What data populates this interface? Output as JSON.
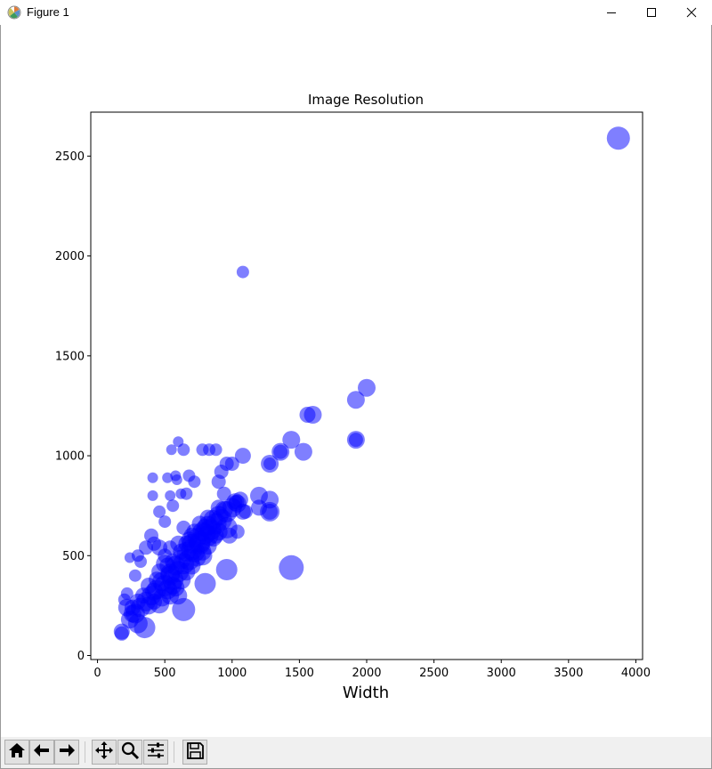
{
  "window": {
    "title": "Figure 1",
    "icons": {
      "app": "matplotlib-logo-icon",
      "minimize": "minimize-icon",
      "maximize": "maximize-icon",
      "close": "close-icon"
    }
  },
  "toolbar": {
    "buttons": [
      "home-icon",
      "back-arrow-icon",
      "forward-arrow-icon",
      "pan-icon",
      "zoom-magnifier-icon",
      "configure-subplots-icon",
      "save-disk-icon"
    ]
  },
  "chart_data": {
    "type": "scatter",
    "title": "Image Resolution",
    "xlabel": "Width",
    "ylabel": "",
    "xlim": [
      -50,
      4050
    ],
    "ylim": [
      -20,
      2720
    ],
    "xticks": [
      0,
      500,
      1000,
      1500,
      2000,
      2500,
      3000,
      3500,
      4000
    ],
    "yticks": [
      0,
      500,
      1000,
      1500,
      2000,
      2500
    ],
    "grid": false,
    "marker_color": "#0000ff",
    "marker_alpha": 0.5,
    "size_encoding": "marker size varies per point",
    "points": [
      [
        3870,
        2590,
        13
      ],
      [
        1080,
        1920,
        7
      ],
      [
        2000,
        1340,
        10
      ],
      [
        1920,
        1280,
        10
      ],
      [
        1600,
        1205,
        10
      ],
      [
        1560,
        1205,
        9
      ],
      [
        1920,
        1080,
        10
      ],
      [
        1920,
        1080,
        8
      ],
      [
        1440,
        1080,
        10
      ],
      [
        1530,
        1020,
        10
      ],
      [
        1360,
        1020,
        10
      ],
      [
        1360,
        1020,
        8
      ],
      [
        1280,
        960,
        10
      ],
      [
        1280,
        960,
        7
      ],
      [
        1440,
        440,
        14
      ],
      [
        1280,
        720,
        11
      ],
      [
        1280,
        720,
        9
      ],
      [
        1280,
        780,
        10
      ],
      [
        1200,
        800,
        10
      ],
      [
        1200,
        740,
        9
      ],
      [
        1080,
        1000,
        9
      ],
      [
        1080,
        720,
        9
      ],
      [
        1024,
        768,
        10
      ],
      [
        1024,
        768,
        8
      ],
      [
        1000,
        960,
        8
      ],
      [
        960,
        960,
        8
      ],
      [
        920,
        920,
        8
      ],
      [
        900,
        870,
        8
      ],
      [
        940,
        810,
        8
      ],
      [
        960,
        640,
        12
      ],
      [
        960,
        430,
        12
      ],
      [
        900,
        740,
        9
      ],
      [
        880,
        1030,
        7
      ],
      [
        830,
        1030,
        7
      ],
      [
        780,
        1030,
        7
      ],
      [
        800,
        640,
        10
      ],
      [
        820,
        600,
        12
      ],
      [
        760,
        560,
        12
      ],
      [
        780,
        500,
        11
      ],
      [
        700,
        530,
        12
      ],
      [
        720,
        870,
        7
      ],
      [
        680,
        900,
        7
      ],
      [
        640,
        1030,
        7
      ],
      [
        600,
        1070,
        6
      ],
      [
        550,
        1030,
        6
      ],
      [
        580,
        900,
        6
      ],
      [
        590,
        880,
        6
      ],
      [
        520,
        890,
        6
      ],
      [
        410,
        890,
        6
      ],
      [
        410,
        800,
        6
      ],
      [
        540,
        800,
        6
      ],
      [
        620,
        810,
        6
      ],
      [
        660,
        810,
        7
      ],
      [
        560,
        750,
        7
      ],
      [
        500,
        670,
        7
      ],
      [
        460,
        720,
        7
      ],
      [
        640,
        640,
        8
      ],
      [
        700,
        600,
        9
      ],
      [
        800,
        360,
        12
      ],
      [
        640,
        230,
        13
      ],
      [
        540,
        400,
        11
      ],
      [
        500,
        460,
        10
      ],
      [
        460,
        540,
        9
      ],
      [
        420,
        560,
        8
      ],
      [
        400,
        600,
        8
      ],
      [
        360,
        540,
        8
      ],
      [
        300,
        500,
        7
      ],
      [
        320,
        470,
        7
      ],
      [
        280,
        400,
        7
      ],
      [
        240,
        490,
        6
      ],
      [
        560,
        350,
        10
      ],
      [
        600,
        300,
        10
      ],
      [
        460,
        260,
        11
      ],
      [
        380,
        250,
        10
      ],
      [
        350,
        140,
        12
      ],
      [
        300,
        160,
        11
      ],
      [
        260,
        210,
        10
      ],
      [
        220,
        240,
        10
      ],
      [
        200,
        280,
        7
      ],
      [
        220,
        310,
        7
      ],
      [
        180,
        120,
        9
      ],
      [
        180,
        110,
        8
      ],
      [
        240,
        180,
        10
      ],
      [
        420,
        320,
        10
      ],
      [
        500,
        350,
        12
      ],
      [
        520,
        330,
        11
      ],
      [
        560,
        380,
        12
      ],
      [
        600,
        420,
        12
      ],
      [
        640,
        460,
        12
      ],
      [
        680,
        480,
        12
      ],
      [
        720,
        520,
        12
      ],
      [
        760,
        570,
        12
      ],
      [
        800,
        610,
        12
      ],
      [
        840,
        630,
        12
      ],
      [
        880,
        660,
        12
      ],
      [
        920,
        680,
        12
      ],
      [
        960,
        720,
        12
      ],
      [
        1000,
        740,
        11
      ],
      [
        1040,
        760,
        10
      ],
      [
        1060,
        780,
        9
      ],
      [
        580,
        450,
        11
      ],
      [
        620,
        480,
        11
      ],
      [
        660,
        520,
        11
      ],
      [
        700,
        560,
        11
      ],
      [
        740,
        590,
        11
      ],
      [
        780,
        620,
        11
      ],
      [
        820,
        650,
        11
      ],
      [
        860,
        680,
        11
      ],
      [
        900,
        700,
        11
      ],
      [
        940,
        730,
        10
      ],
      [
        540,
        410,
        11
      ],
      [
        480,
        370,
        11
      ],
      [
        440,
        330,
        11
      ],
      [
        400,
        300,
        11
      ],
      [
        360,
        270,
        11
      ],
      [
        320,
        240,
        11
      ],
      [
        280,
        210,
        11
      ],
      [
        620,
        380,
        11
      ],
      [
        660,
        420,
        10
      ],
      [
        700,
        450,
        10
      ],
      [
        740,
        490,
        10
      ],
      [
        780,
        520,
        10
      ],
      [
        820,
        550,
        10
      ],
      [
        860,
        590,
        10
      ],
      [
        900,
        620,
        10
      ],
      [
        680,
        580,
        9
      ],
      [
        720,
        620,
        9
      ],
      [
        760,
        660,
        9
      ],
      [
        820,
        690,
        9
      ],
      [
        880,
        600,
        9
      ],
      [
        980,
        600,
        9
      ],
      [
        1040,
        620,
        8
      ],
      [
        1100,
        720,
        8
      ],
      [
        460,
        420,
        9
      ],
      [
        500,
        500,
        8
      ],
      [
        540,
        540,
        8
      ],
      [
        600,
        560,
        9
      ],
      [
        380,
        350,
        9
      ],
      [
        340,
        300,
        9
      ],
      [
        300,
        270,
        9
      ],
      [
        260,
        240,
        9
      ],
      [
        420,
        270,
        9
      ],
      [
        480,
        290,
        10
      ],
      [
        540,
        300,
        10
      ],
      [
        580,
        340,
        10
      ],
      [
        440,
        380,
        9
      ],
      [
        520,
        450,
        9
      ],
      [
        560,
        470,
        9
      ],
      [
        620,
        520,
        9
      ],
      [
        660,
        560,
        9
      ]
    ]
  }
}
